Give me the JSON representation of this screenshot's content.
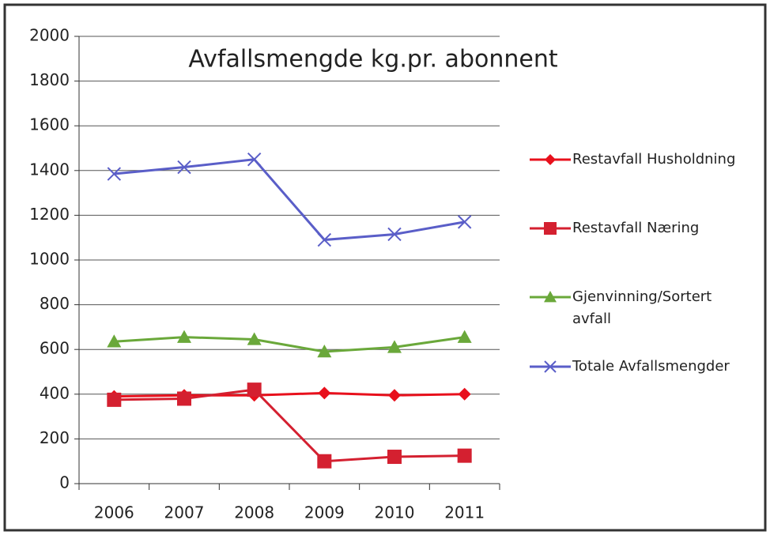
{
  "chart_data": {
    "type": "line",
    "title": "Avfallsmengde kg.pr. abonnent",
    "categories": [
      "2006",
      "2007",
      "2008",
      "2009",
      "2010",
      "2011"
    ],
    "series": [
      {
        "name": "Restavfall Husholdning",
        "color": "#e8101c",
        "marker": "diamond",
        "values": [
          390,
          395,
          395,
          405,
          395,
          400
        ]
      },
      {
        "name": "Restavfall Næring",
        "color": "#d42030",
        "marker": "square",
        "values": [
          375,
          380,
          420,
          100,
          120,
          125
        ]
      },
      {
        "name": "Gjenvinning/Sortert avfall",
        "color": "#6aa83a",
        "marker": "triangle",
        "values": [
          635,
          655,
          645,
          590,
          610,
          655
        ]
      },
      {
        "name": "Totale Avfallsmengder",
        "color": "#5a5ec8",
        "marker": "x",
        "values": [
          1385,
          1415,
          1450,
          1090,
          1115,
          1170
        ]
      }
    ],
    "ylim": [
      0,
      2000
    ],
    "yticks": [
      0,
      200,
      400,
      600,
      800,
      1000,
      1200,
      1400,
      1600,
      1800,
      2000
    ],
    "grid": true,
    "legend": "right"
  }
}
